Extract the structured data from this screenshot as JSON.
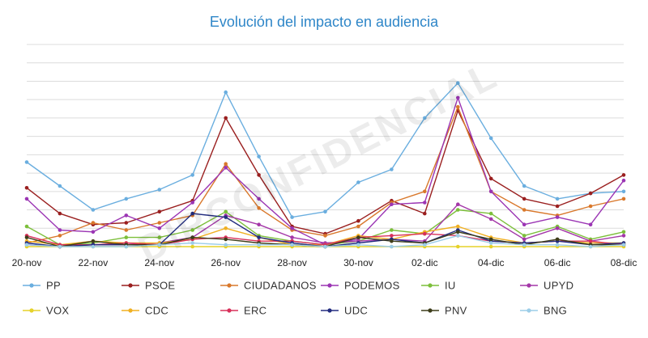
{
  "chart_data": {
    "type": "line",
    "title": "Evolución del impacto en audiencia",
    "watermark": "DIRCONFIDENCIAL",
    "xlabel": "",
    "ylabel": "",
    "ylim": [
      0,
      11
    ],
    "grid": true,
    "legend_position": "bottom",
    "x_tick_labels": [
      "20-nov",
      "22-nov",
      "24-nov",
      "26-nov",
      "28-nov",
      "30-nov",
      "02-dic",
      "04-dic",
      "06-dic",
      "08-dic"
    ],
    "x": [
      "20-nov",
      "21-nov",
      "22-nov",
      "23-nov",
      "24-nov",
      "25-nov",
      "26-nov",
      "27-nov",
      "28-nov",
      "29-nov",
      "30-nov",
      "01-dic",
      "02-dic",
      "03-dic",
      "04-dic",
      "05-dic",
      "06-dic",
      "07-dic",
      "08-dic"
    ],
    "series": [
      {
        "name": "PP",
        "color": "#6aaedf",
        "values": [
          4.6,
          3.3,
          2.0,
          2.6,
          3.1,
          3.9,
          8.4,
          4.9,
          1.6,
          1.9,
          3.5,
          4.2,
          7.0,
          8.9,
          5.9,
          3.3,
          2.6,
          2.9,
          3.0
        ]
      },
      {
        "name": "PSOE",
        "color": "#9a1f1f",
        "values": [
          3.2,
          1.8,
          1.2,
          1.3,
          1.9,
          2.5,
          7.0,
          3.9,
          1.1,
          0.7,
          1.4,
          2.5,
          1.8,
          7.4,
          3.7,
          2.6,
          2.2,
          2.9,
          3.9
        ]
      },
      {
        "name": "CIUDADANOS",
        "color": "#d9782b",
        "values": [
          0.2,
          0.6,
          1.3,
          0.9,
          1.3,
          1.7,
          4.5,
          2.1,
          0.9,
          0.6,
          1.1,
          2.4,
          3.0,
          7.6,
          3.0,
          2.0,
          1.7,
          2.2,
          2.6
        ]
      },
      {
        "name": "PODEMOS",
        "color": "#9b35b4",
        "values": [
          2.6,
          0.9,
          0.8,
          1.7,
          1.0,
          2.4,
          4.3,
          2.6,
          1.0,
          0.1,
          0.4,
          2.3,
          2.4,
          8.1,
          3.0,
          1.2,
          1.6,
          1.2,
          3.6
        ]
      },
      {
        "name": "IU",
        "color": "#7cbf3a",
        "values": [
          1.1,
          0.1,
          0.2,
          0.5,
          0.5,
          0.9,
          1.9,
          0.6,
          0.3,
          0.1,
          0.3,
          0.9,
          0.7,
          2.0,
          1.8,
          0.6,
          1.1,
          0.4,
          0.8
        ]
      },
      {
        "name": "UPYD",
        "color": "#a437a8",
        "values": [
          0.1,
          0.0,
          0.1,
          0.1,
          0.2,
          0.5,
          1.7,
          1.2,
          0.5,
          0.2,
          0.3,
          0.4,
          0.3,
          2.3,
          1.5,
          0.4,
          1.0,
          0.3,
          0.6
        ]
      },
      {
        "name": "VOX",
        "color": "#e6d22a",
        "values": [
          0.0,
          0.0,
          0.0,
          0.0,
          0.0,
          0.0,
          0.0,
          0.0,
          0.0,
          0.0,
          0.0,
          0.0,
          0.0,
          0.0,
          0.0,
          0.0,
          0.0,
          0.0,
          0.0
        ]
      },
      {
        "name": "CDC",
        "color": "#f0b022",
        "values": [
          0.3,
          0.1,
          0.3,
          0.2,
          0.2,
          0.4,
          1.0,
          0.5,
          0.1,
          0.1,
          0.6,
          0.4,
          0.8,
          1.1,
          0.5,
          0.2,
          0.3,
          0.2,
          0.2
        ]
      },
      {
        "name": "ERC",
        "color": "#d8305a",
        "values": [
          0.6,
          0.1,
          0.1,
          0.2,
          0.1,
          0.4,
          0.5,
          0.3,
          0.3,
          0.1,
          0.5,
          0.6,
          0.7,
          0.6,
          0.3,
          0.2,
          0.3,
          0.3,
          0.1
        ]
      },
      {
        "name": "UDC",
        "color": "#232d80",
        "values": [
          0.2,
          0.0,
          0.1,
          0.1,
          0.1,
          1.8,
          1.6,
          0.5,
          0.2,
          0.0,
          0.2,
          0.4,
          0.2,
          0.9,
          0.3,
          0.2,
          0.3,
          0.1,
          0.2
        ]
      },
      {
        "name": "PNV",
        "color": "#3d3d1a",
        "values": [
          0.5,
          0.0,
          0.3,
          0.1,
          0.1,
          0.5,
          0.4,
          0.2,
          0.1,
          0.0,
          0.5,
          0.3,
          0.2,
          0.8,
          0.4,
          0.1,
          0.4,
          0.1,
          0.1
        ]
      },
      {
        "name": "BNG",
        "color": "#9ccde8",
        "values": [
          0.1,
          0.0,
          0.0,
          0.0,
          0.1,
          0.2,
          0.1,
          0.1,
          0.1,
          0.0,
          0.1,
          0.0,
          0.1,
          0.6,
          0.2,
          0.1,
          0.1,
          0.0,
          0.1
        ]
      }
    ]
  }
}
